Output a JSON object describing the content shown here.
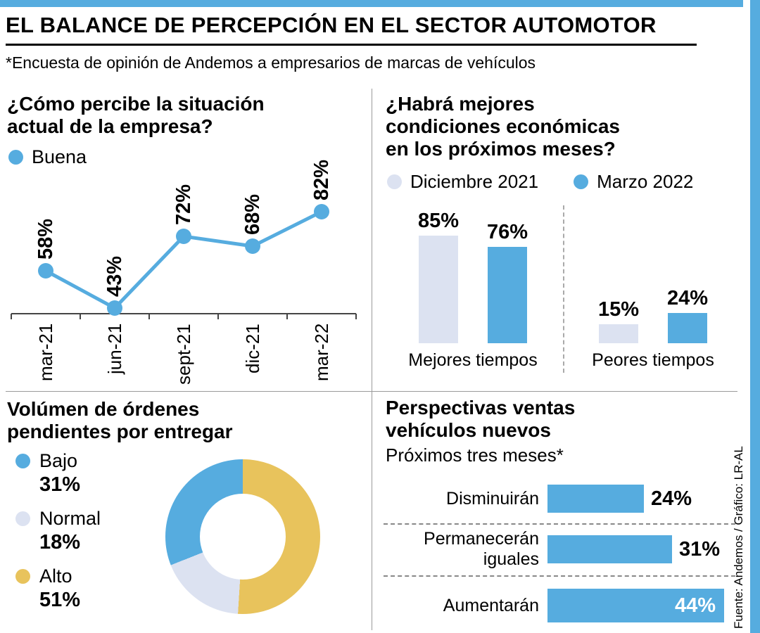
{
  "page": {
    "title": "EL BALANCE DE PERCEPCIÓN EN EL SECTOR AUTOMOTOR",
    "subtitle": "*Encuesta de opinión de Andemos a empresarios de marcas de vehículos",
    "source": "Fuente: Andemos / Gráfico: LR-AL"
  },
  "colors": {
    "accent_blue": "#56ACDF",
    "light_lavender": "#DCE2F1",
    "gold": "#E8C35C"
  },
  "chart_data": [
    {
      "id": "situacion-actual",
      "type": "line",
      "title": "¿Cómo percibe la situación actual de la empresa?",
      "legend": [
        "Buena"
      ],
      "categories": [
        "mar-21",
        "jun-21",
        "sept-21",
        "dic-21",
        "mar-22"
      ],
      "values": [
        58,
        43,
        72,
        68,
        82
      ],
      "value_labels": [
        "58%",
        "43%",
        "72%",
        "68%",
        "82%"
      ],
      "unit": "%"
    },
    {
      "id": "condiciones-economicas",
      "type": "bar",
      "title": "¿Habrá mejores condiciones económicas en los próximos meses?",
      "categories": [
        "Mejores tiempos",
        "Peores tiempos"
      ],
      "series": [
        {
          "name": "Diciembre 2021",
          "color": "#DCE2F1",
          "values": [
            85,
            15
          ],
          "value_labels": [
            "85%",
            "15%"
          ]
        },
        {
          "name": "Marzo 2022",
          "color": "#56ACDF",
          "values": [
            76,
            24
          ],
          "value_labels": [
            "76%",
            "24%"
          ]
        }
      ],
      "unit": "%"
    },
    {
      "id": "volumen-ordenes",
      "type": "pie",
      "title": "Volúmen de órdenes pendientes por entregar",
      "legend": [
        {
          "label": "Bajo",
          "value": 31,
          "value_label": "31%",
          "color": "#56ACDF"
        },
        {
          "label": "Normal",
          "value": 18,
          "value_label": "18%",
          "color": "#DCE2F1"
        },
        {
          "label": "Alto",
          "value": 51,
          "value_label": "51%",
          "color": "#E8C35C"
        }
      ],
      "draw_order": [
        "Alto",
        "Normal",
        "Bajo"
      ],
      "unit": "%"
    },
    {
      "id": "perspectivas-ventas",
      "type": "bar",
      "title": "Perspectivas ventas vehículos nuevos",
      "subtitle": "Próximos tres meses*",
      "categories": [
        "Disminuirán",
        "Permanecerán iguales",
        "Aumentarán"
      ],
      "values": [
        24,
        31,
        44
      ],
      "value_labels": [
        "24%",
        "31%",
        "44%"
      ],
      "unit": "%"
    }
  ]
}
